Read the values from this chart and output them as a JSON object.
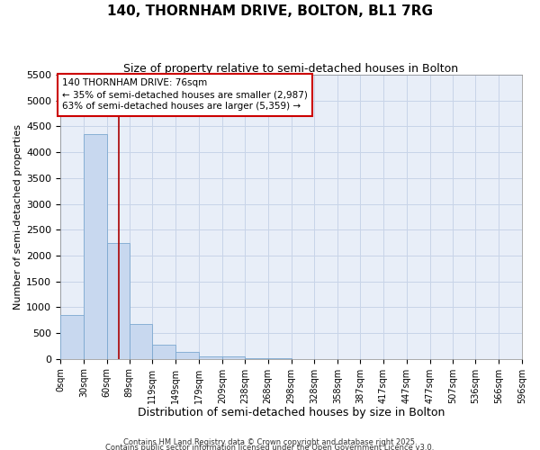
{
  "title": "140, THORNHAM DRIVE, BOLTON, BL1 7RG",
  "subtitle": "Size of property relative to semi-detached houses in Bolton",
  "xlabel": "Distribution of semi-detached houses by size in Bolton",
  "ylabel": "Number of semi-detached properties",
  "bar_edges": [
    0,
    30,
    60,
    89,
    119,
    149,
    179,
    209,
    238,
    268,
    298,
    328,
    358,
    387,
    417,
    447,
    477,
    507,
    536,
    566,
    596
  ],
  "bar_heights": [
    850,
    4350,
    2250,
    680,
    270,
    130,
    50,
    40,
    20,
    5,
    0,
    0,
    0,
    0,
    0,
    0,
    0,
    0,
    0,
    0
  ],
  "bar_color": "#c8d8ef",
  "bar_edgecolor": "#7ca8d0",
  "vline_x": 76,
  "vline_color": "#aa0000",
  "ylim": [
    0,
    5500
  ],
  "yticks": [
    0,
    500,
    1000,
    1500,
    2000,
    2500,
    3000,
    3500,
    4000,
    4500,
    5000,
    5500
  ],
  "annotation_box_title": "140 THORNHAM DRIVE: 76sqm",
  "annotation_line1": "← 35% of semi-detached houses are smaller (2,987)",
  "annotation_line2": "63% of semi-detached houses are larger (5,359) →",
  "annotation_box_color": "#cc0000",
  "grid_color": "#c8d4e8",
  "background_color": "#e8eef8",
  "footer1": "Contains HM Land Registry data © Crown copyright and database right 2025.",
  "footer2": "Contains public sector information licensed under the Open Government Licence v3.0.",
  "tick_labels": [
    "0sqm",
    "30sqm",
    "60sqm",
    "89sqm",
    "119sqm",
    "149sqm",
    "179sqm",
    "209sqm",
    "238sqm",
    "268sqm",
    "298sqm",
    "328sqm",
    "358sqm",
    "387sqm",
    "417sqm",
    "447sqm",
    "477sqm",
    "507sqm",
    "536sqm",
    "566sqm",
    "596sqm"
  ]
}
